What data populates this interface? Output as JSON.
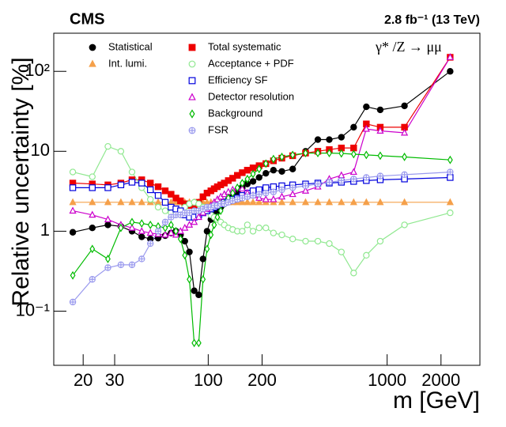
{
  "chart_data": {
    "type": "line",
    "title": "CMS",
    "subtitle": "2.8 fb⁻¹ (13 TeV)",
    "annotation": "γ* /Z → μμ",
    "x_label": "m [GeV]",
    "y_label": "Relative uncertainty [%]",
    "x_log": true,
    "y_log": true,
    "xlim": [
      13.7,
      3300
    ],
    "ylim": [
      0.021,
      300
    ],
    "xticks": [
      20,
      30,
      100,
      200,
      1000,
      2000
    ],
    "yticks": [
      {
        "value": 0.1,
        "label": "10⁻¹"
      },
      1,
      10,
      {
        "value": 100,
        "label": "10²"
      }
    ],
    "x": [
      17.5,
      22.5,
      27.5,
      32.5,
      37.5,
      42.5,
      47.5,
      52.5,
      57.5,
      62,
      66,
      70,
      74,
      78.5,
      83.5,
      88.5,
      93.5,
      98.5,
      103.5,
      108,
      112.5,
      117.5,
      123,
      129.5,
      137,
      145.5,
      155,
      165.5,
      178,
      192.5,
      210,
      231.5,
      258,
      296.5,
      350,
      410,
      475,
      555,
      650,
      765,
      915,
      1250,
      2250
    ],
    "series": [
      {
        "name": "Statistical",
        "color": "#000000",
        "marker": "circle",
        "filled": true,
        "values": [
          0.97,
          1.1,
          1.2,
          1.15,
          1.0,
          0.85,
          0.8,
          0.82,
          0.88,
          0.95,
          1.0,
          0.9,
          0.75,
          0.55,
          0.18,
          0.16,
          0.45,
          1.0,
          1.4,
          1.6,
          1.8,
          2.0,
          2.2,
          2.5,
          2.8,
          3.1,
          3.5,
          3.9,
          4.2,
          4.7,
          5.3,
          5.8,
          5.6,
          6,
          10,
          14,
          14,
          15,
          20,
          36,
          33,
          37,
          100
        ]
      },
      {
        "name": "Int. lumi.",
        "color": "#f5a04a",
        "marker": "triangle",
        "filled": true,
        "values": [
          2.3,
          2.3,
          2.3,
          2.3,
          2.3,
          2.3,
          2.3,
          2.3,
          2.3,
          2.3,
          2.3,
          2.3,
          2.3,
          2.3,
          2.3,
          2.3,
          2.3,
          2.3,
          2.3,
          2.3,
          2.3,
          2.3,
          2.3,
          2.3,
          2.3,
          2.3,
          2.3,
          2.3,
          2.3,
          2.3,
          2.3,
          2.3,
          2.3,
          2.3,
          2.3,
          2.3,
          2.3,
          2.3,
          2.3,
          2.3,
          2.3,
          2.3,
          2.3
        ]
      },
      {
        "name": "Total systematic",
        "color": "#ee0000",
        "marker": "square",
        "filled": true,
        "values": [
          4.0,
          3.9,
          3.8,
          4.0,
          4.4,
          4.4,
          4.0,
          3.6,
          3.2,
          2.9,
          2.6,
          2.4,
          2.2,
          2.1,
          2.1,
          2.3,
          2.7,
          3.0,
          3.2,
          3.4,
          3.6,
          3.8,
          4.0,
          4.3,
          4.6,
          5.0,
          5.4,
          5.8,
          6.2,
          6.6,
          7.0,
          7.6,
          8.2,
          8.8,
          9.5,
          10,
          10.5,
          11,
          11,
          22,
          20,
          20,
          150
        ]
      },
      {
        "name": "Acceptance + PDF",
        "color": "#90e890",
        "marker": "circle",
        "filled": false,
        "values": [
          5.5,
          4.8,
          11.5,
          10,
          5.5,
          3.5,
          2.5,
          2.0,
          1.8,
          1.7,
          1.7,
          1.8,
          2.0,
          2.2,
          2.3,
          2.2,
          2.0,
          1.8,
          1.6,
          1.5,
          1.4,
          1.3,
          1.2,
          1.1,
          1.05,
          1.0,
          1.0,
          1.2,
          1.0,
          1.1,
          1.1,
          0.95,
          0.9,
          0.8,
          0.75,
          0.75,
          0.7,
          0.55,
          0.3,
          0.5,
          0.75,
          1.2,
          1.7
        ]
      },
      {
        "name": "Efficiency SF",
        "color": "#0000dd",
        "marker": "square",
        "filled": false,
        "values": [
          3.5,
          3.5,
          3.5,
          3.8,
          4.1,
          4.0,
          3.3,
          2.8,
          2.3,
          2.0,
          1.9,
          1.8,
          1.6,
          1.5,
          1.5,
          1.6,
          1.7,
          1.8,
          1.9,
          2.0,
          2.1,
          2.2,
          2.3,
          2.4,
          2.5,
          2.6,
          2.8,
          3.0,
          3.2,
          3.3,
          3.5,
          3.6,
          3.7,
          3.8,
          3.9,
          4.0,
          4.0,
          4.1,
          4.2,
          4.3,
          4.4,
          4.5,
          4.7
        ]
      },
      {
        "name": "Detector resolution",
        "color": "#cc00cc",
        "marker": "triangle",
        "filled": false,
        "values": [
          1.8,
          1.6,
          1.4,
          1.2,
          1.1,
          1.0,
          0.95,
          0.92,
          0.9,
          0.95,
          0.9,
          1.0,
          1.1,
          1.2,
          1.3,
          1.5,
          1.7,
          1.9,
          2.1,
          2.3,
          2.5,
          2.7,
          2.9,
          3.1,
          3.3,
          3.5,
          3.4,
          3.0,
          2.8,
          2.6,
          2.5,
          2.5,
          2.7,
          2.9,
          3.2,
          3.6,
          4.5,
          5.0,
          5.5,
          19,
          18,
          17,
          150
        ]
      },
      {
        "name": "Background",
        "color": "#00bb00",
        "marker": "diamond",
        "filled": false,
        "values": [
          0.28,
          0.6,
          0.45,
          1.1,
          1.3,
          1.25,
          1.2,
          1.15,
          1.1,
          1.2,
          1.0,
          0.8,
          0.5,
          0.25,
          0.04,
          0.04,
          0.25,
          0.6,
          0.9,
          1.2,
          1.5,
          1.8,
          2.2,
          2.6,
          3.0,
          3.5,
          4.0,
          4.5,
          5.2,
          6.0,
          7.0,
          8.0,
          8.5,
          9.0,
          9.5,
          9.5,
          9.5,
          9.4,
          9.2,
          9.0,
          8.8,
          8.5,
          7.8
        ]
      },
      {
        "name": "FSR",
        "color": "#9a9aee",
        "marker": "crosscircle",
        "filled": false,
        "values": [
          0.13,
          0.25,
          0.35,
          0.38,
          0.38,
          0.45,
          0.7,
          1.0,
          1.3,
          1.5,
          1.6,
          1.6,
          1.7,
          1.7,
          1.8,
          1.8,
          1.9,
          2.0,
          2.0,
          2.1,
          2.1,
          2.2,
          2.2,
          2.3,
          2.4,
          2.5,
          2.6,
          2.7,
          2.8,
          2.9,
          3.0,
          3.1,
          3.3,
          3.5,
          3.7,
          3.9,
          4.1,
          4.3,
          4.5,
          4.7,
          4.9,
          5.1,
          5.5
        ]
      }
    ]
  }
}
